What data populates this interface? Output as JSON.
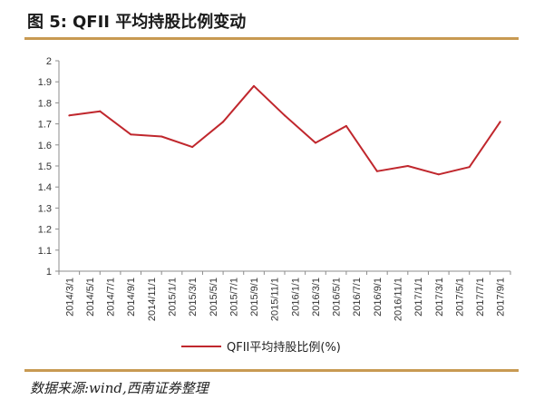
{
  "header": {
    "figure_label": "图 5:",
    "title": "QFII 平均持股比例变动"
  },
  "footer": {
    "source": "数据来源:wind,西南证券整理"
  },
  "colors": {
    "line": "#c0272d",
    "rule": "#c89a52",
    "axis": "#8c8c8c"
  },
  "chart_data": {
    "type": "line",
    "categories": [
      "2014/3/1",
      "2014/5/1",
      "2014/7/1",
      "2014/9/1",
      "2014/11/1",
      "2015/1/1",
      "2015/3/1",
      "2015/5/1",
      "2015/7/1",
      "2015/9/1",
      "2015/11/1",
      "2016/1/1",
      "2016/3/1",
      "2016/5/1",
      "2016/7/1",
      "2016/9/1",
      "2016/11/1",
      "2017/1/1",
      "2017/3/1",
      "2017/5/1",
      "2017/7/1",
      "2017/9/1"
    ],
    "series": [
      {
        "name": "QFII平均持股比例(%)",
        "points": [
          {
            "x": "2014/3/1",
            "y": 1.74
          },
          {
            "x": "2014/6/1",
            "y": 1.76
          },
          {
            "x": "2014/9/1",
            "y": 1.65
          },
          {
            "x": "2014/12/1",
            "y": 1.64
          },
          {
            "x": "2015/3/1",
            "y": 1.59
          },
          {
            "x": "2015/6/1",
            "y": 1.71
          },
          {
            "x": "2015/9/1",
            "y": 1.88
          },
          {
            "x": "2015/12/1",
            "y": 1.74
          },
          {
            "x": "2016/3/1",
            "y": 1.61
          },
          {
            "x": "2016/6/1",
            "y": 1.69
          },
          {
            "x": "2016/9/1",
            "y": 1.475
          },
          {
            "x": "2016/12/1",
            "y": 1.5
          },
          {
            "x": "2017/3/1",
            "y": 1.46
          },
          {
            "x": "2017/6/1",
            "y": 1.495
          },
          {
            "x": "2017/9/1",
            "y": 1.71
          }
        ]
      }
    ],
    "yticks": [
      "1",
      "1.1",
      "1.2",
      "1.3",
      "1.4",
      "1.5",
      "1.6",
      "1.7",
      "1.8",
      "1.9",
      "2"
    ],
    "ylim": [
      1,
      2
    ],
    "grid": false,
    "legend": "bottom"
  }
}
